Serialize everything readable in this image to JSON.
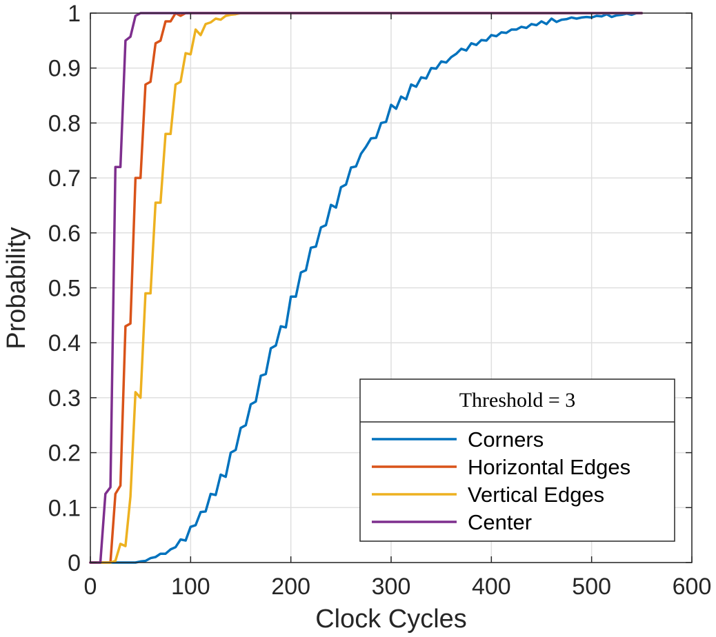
{
  "chart_data": {
    "type": "line",
    "title": "",
    "xlabel": "Clock Cycles",
    "ylabel": "Probability",
    "xlim": [
      0,
      600
    ],
    "ylim": [
      0,
      1
    ],
    "xticks": [
      0,
      100,
      200,
      300,
      400,
      500,
      600
    ],
    "yticks": [
      0,
      0.1,
      0.2,
      0.3,
      0.4,
      0.5,
      0.6,
      0.7,
      0.8,
      0.9,
      1
    ],
    "xtick_labels": [
      "0",
      "100",
      "200",
      "300",
      "400",
      "500",
      "600"
    ],
    "ytick_labels": [
      "0",
      "0.1",
      "0.2",
      "0.3",
      "0.4",
      "0.5",
      "0.6",
      "0.7",
      "0.8",
      "0.9",
      "1"
    ],
    "grid": true,
    "legend": {
      "title": "Threshold = 3",
      "placement": "bottom-right"
    },
    "series": [
      {
        "name": "Corners",
        "color": "#0072BD",
        "points": [
          [
            0,
            0
          ],
          [
            45,
            0
          ],
          [
            50,
            0.002
          ],
          [
            55,
            0.003
          ],
          [
            60,
            0.008
          ],
          [
            65,
            0.01
          ],
          [
            70,
            0.016
          ],
          [
            75,
            0.016
          ],
          [
            80,
            0.024
          ],
          [
            85,
            0.028
          ],
          [
            90,
            0.042
          ],
          [
            95,
            0.04
          ],
          [
            100,
            0.065
          ],
          [
            105,
            0.068
          ],
          [
            110,
            0.092
          ],
          [
            115,
            0.093
          ],
          [
            120,
            0.125
          ],
          [
            125,
            0.123
          ],
          [
            130,
            0.16
          ],
          [
            135,
            0.156
          ],
          [
            140,
            0.2
          ],
          [
            145,
            0.205
          ],
          [
            150,
            0.245
          ],
          [
            155,
            0.25
          ],
          [
            160,
            0.288
          ],
          [
            165,
            0.293
          ],
          [
            170,
            0.34
          ],
          [
            175,
            0.343
          ],
          [
            180,
            0.39
          ],
          [
            185,
            0.395
          ],
          [
            190,
            0.43
          ],
          [
            195,
            0.428
          ],
          [
            200,
            0.484
          ],
          [
            205,
            0.484
          ],
          [
            210,
            0.528
          ],
          [
            215,
            0.532
          ],
          [
            220,
            0.573
          ],
          [
            225,
            0.575
          ],
          [
            230,
            0.61
          ],
          [
            235,
            0.614
          ],
          [
            240,
            0.651
          ],
          [
            245,
            0.646
          ],
          [
            250,
            0.683
          ],
          [
            255,
            0.688
          ],
          [
            260,
            0.719
          ],
          [
            265,
            0.721
          ],
          [
            270,
            0.744
          ],
          [
            275,
            0.757
          ],
          [
            280,
            0.772
          ],
          [
            285,
            0.773
          ],
          [
            290,
            0.8
          ],
          [
            295,
            0.802
          ],
          [
            300,
            0.833
          ],
          [
            305,
            0.826
          ],
          [
            310,
            0.848
          ],
          [
            315,
            0.843
          ],
          [
            320,
            0.87
          ],
          [
            325,
            0.866
          ],
          [
            330,
            0.883
          ],
          [
            335,
            0.881
          ],
          [
            340,
            0.9
          ],
          [
            345,
            0.899
          ],
          [
            350,
            0.912
          ],
          [
            355,
            0.91
          ],
          [
            360,
            0.92
          ],
          [
            365,
            0.926
          ],
          [
            370,
            0.935
          ],
          [
            375,
            0.932
          ],
          [
            380,
            0.945
          ],
          [
            385,
            0.942
          ],
          [
            390,
            0.951
          ],
          [
            395,
            0.95
          ],
          [
            400,
            0.96
          ],
          [
            405,
            0.958
          ],
          [
            410,
            0.965
          ],
          [
            415,
            0.964
          ],
          [
            420,
            0.97
          ],
          [
            425,
            0.97
          ],
          [
            430,
            0.975
          ],
          [
            435,
            0.973
          ],
          [
            440,
            0.98
          ],
          [
            445,
            0.978
          ],
          [
            450,
            0.985
          ],
          [
            455,
            0.98
          ],
          [
            460,
            0.99
          ],
          [
            465,
            0.984
          ],
          [
            470,
            0.988
          ],
          [
            475,
            0.989
          ],
          [
            480,
            0.992
          ],
          [
            485,
            0.99
          ],
          [
            490,
            0.992
          ],
          [
            495,
            0.993
          ],
          [
            500,
            0.992
          ],
          [
            505,
            0.995
          ],
          [
            510,
            0.994
          ],
          [
            515,
            0.998
          ],
          [
            520,
            0.993
          ],
          [
            525,
            0.996
          ],
          [
            530,
            0.997
          ],
          [
            535,
            0.999
          ],
          [
            540,
            0.997
          ],
          [
            545,
            1
          ],
          [
            550,
            1
          ]
        ]
      },
      {
        "name": "Horizontal Edges",
        "color": "#D95319",
        "points": [
          [
            0,
            0
          ],
          [
            10,
            0
          ],
          [
            15,
            0
          ],
          [
            20,
            0
          ],
          [
            25,
            0.125
          ],
          [
            30,
            0.14
          ],
          [
            35,
            0.43
          ],
          [
            40,
            0.435
          ],
          [
            45,
            0.7
          ],
          [
            50,
            0.7
          ],
          [
            55,
            0.87
          ],
          [
            60,
            0.875
          ],
          [
            65,
            0.945
          ],
          [
            70,
            0.95
          ],
          [
            75,
            0.985
          ],
          [
            80,
            0.985
          ],
          [
            85,
            1
          ],
          [
            90,
            0.995
          ],
          [
            95,
            1
          ],
          [
            550,
            1
          ]
        ]
      },
      {
        "name": "Vertical Edges",
        "color": "#EDB120",
        "points": [
          [
            0,
            0
          ],
          [
            15,
            0
          ],
          [
            20,
            0
          ],
          [
            25,
            0.003
          ],
          [
            30,
            0.034
          ],
          [
            35,
            0.03
          ],
          [
            40,
            0.12
          ],
          [
            45,
            0.31
          ],
          [
            50,
            0.3
          ],
          [
            55,
            0.49
          ],
          [
            60,
            0.49
          ],
          [
            65,
            0.655
          ],
          [
            70,
            0.655
          ],
          [
            75,
            0.78
          ],
          [
            80,
            0.78
          ],
          [
            85,
            0.87
          ],
          [
            90,
            0.875
          ],
          [
            95,
            0.927
          ],
          [
            100,
            0.925
          ],
          [
            105,
            0.97
          ],
          [
            110,
            0.96
          ],
          [
            115,
            0.98
          ],
          [
            120,
            0.983
          ],
          [
            125,
            0.99
          ],
          [
            130,
            0.988
          ],
          [
            135,
            0.995
          ],
          [
            140,
            0.997
          ],
          [
            145,
            0.998
          ],
          [
            150,
            1
          ],
          [
            550,
            1
          ]
        ]
      },
      {
        "name": "Center",
        "color": "#7E2F8E",
        "points": [
          [
            0,
            0
          ],
          [
            10,
            0
          ],
          [
            15,
            0.125
          ],
          [
            20,
            0.137
          ],
          [
            25,
            0.72
          ],
          [
            30,
            0.72
          ],
          [
            35,
            0.95
          ],
          [
            40,
            0.957
          ],
          [
            45,
            0.995
          ],
          [
            50,
            1
          ],
          [
            550,
            1
          ]
        ]
      }
    ]
  }
}
